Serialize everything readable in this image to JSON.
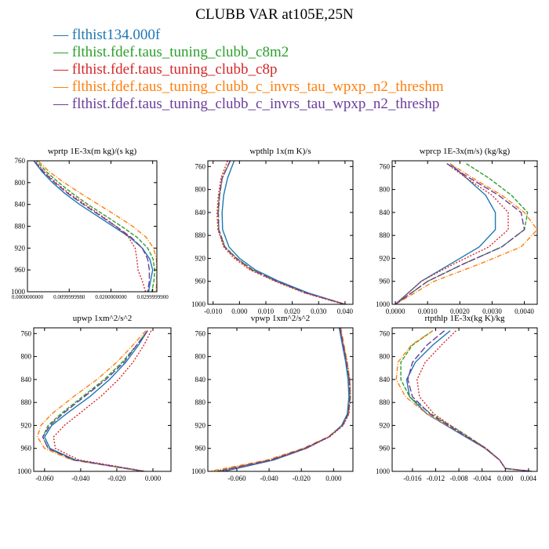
{
  "title": "CLUBB VAR at105E,25N",
  "colors": {
    "flthist134.000f": "#1f77b4",
    "flthist.fdef.taus_tuning_clubb_c8m2": "#2ca02c",
    "flthist.fdef.taus_tuning_clubb_c8p": "#d62728",
    "flthist.fdef.taus_tuning_clubb_c_invrs_tau_wpxp_n2_threshm": "#ff7f0e",
    "flthist.fdef.taus_tuning_clubb_c_invrs_tau_wpxp_n2_threshp": "#6a3d9a"
  },
  "legend": {
    "marker": "—",
    "entries": [
      "flthist134.000f",
      "flthist.fdef.taus_tuning_clubb_c8m2",
      "flthist.fdef.taus_tuning_clubb_c8p",
      "flthist.fdef.taus_tuning_clubb_c_invrs_tau_wpxp_n2_threshm",
      "flthist.fdef.taus_tuning_clubb_c_invrs_tau_wpxp_n2_threshp"
    ]
  },
  "chart_data": [
    {
      "type": "line",
      "title": "wprtp  1E-3x(m kg)/(s kg)",
      "xlim": [
        0,
        0.031
      ],
      "ylim": [
        760,
        1000
      ],
      "y_inverted": true,
      "xticks": [
        0,
        0.01,
        0.02,
        0.03
      ],
      "xticklabels": [
        "0.0000000000",
        "0.0099999980",
        "0.0200000000",
        "0.0299999900"
      ],
      "yticks": [
        760,
        800,
        840,
        880,
        920,
        960,
        1000
      ],
      "yticklabels": [
        "760",
        "800",
        "840",
        "880",
        "920",
        "960",
        "1000"
      ],
      "y": [
        750,
        780,
        800,
        820,
        840,
        860,
        880,
        900,
        920,
        940,
        960,
        980,
        1000
      ],
      "series": [
        {
          "name": "flthist134.000f",
          "x": [
            0.0005,
            0.0035,
            0.006,
            0.009,
            0.0125,
            0.0165,
            0.0205,
            0.0245,
            0.0275,
            0.0293,
            0.03,
            0.0295,
            0.029
          ]
        },
        {
          "name": "flthist.fdef.taus_tuning_clubb_c8m2",
          "x": [
            0.001,
            0.0045,
            0.0075,
            0.0108,
            0.0145,
            0.0185,
            0.0225,
            0.0262,
            0.0288,
            0.0301,
            0.0305,
            0.0303,
            0.0298
          ]
        },
        {
          "name": "flthist.fdef.taus_tuning_clubb_c8p",
          "x": [
            0.0005,
            0.004,
            0.0068,
            0.01,
            0.0138,
            0.0176,
            0.0212,
            0.0242,
            0.0258,
            0.0262,
            0.0265,
            0.0275,
            0.0283
          ]
        },
        {
          "name": "flthist.fdef.taus_tuning_clubb_c_invrs_tau_wpxp_n2_threshm",
          "x": [
            0.0012,
            0.0052,
            0.0088,
            0.0128,
            0.017,
            0.0212,
            0.0252,
            0.0284,
            0.0302,
            0.0309,
            0.031,
            0.031,
            0.0308
          ]
        },
        {
          "name": "flthist.fdef.taus_tuning_clubb_c_invrs_tau_wpxp_n2_threshp",
          "x": [
            0.0005,
            0.0038,
            0.0065,
            0.0097,
            0.0134,
            0.0173,
            0.0212,
            0.0248,
            0.0275,
            0.0288,
            0.0292,
            0.0292,
            0.0288
          ]
        }
      ]
    },
    {
      "type": "line",
      "title": "wpthlp  1x(m K)/s",
      "xlim": [
        -0.012,
        0.043
      ],
      "ylim": [
        750,
        1000
      ],
      "y_inverted": true,
      "xticks": [
        -0.01,
        0.0,
        0.01,
        0.02,
        0.03,
        0.04
      ],
      "xticklabels": [
        "-0.010",
        "0.000",
        "0.010",
        "0.020",
        "0.030",
        "0.040"
      ],
      "yticks": [
        760,
        800,
        840,
        880,
        920,
        960,
        1000
      ],
      "yticklabels": [
        "760",
        "800",
        "840",
        "880",
        "920",
        "960",
        "1000"
      ],
      "y": [
        750,
        780,
        810,
        840,
        870,
        900,
        920,
        940,
        960,
        980,
        1000
      ],
      "series": [
        {
          "name": "flthist134.000f",
          "x": [
            -0.002,
            -0.0045,
            -0.006,
            -0.0066,
            -0.0064,
            -0.004,
            0.0,
            0.006,
            0.015,
            0.026,
            0.04
          ]
        },
        {
          "name": "flthist.fdef.taus_tuning_clubb_c8m2",
          "x": [
            -0.0035,
            -0.0065,
            -0.0075,
            -0.008,
            -0.0078,
            -0.0055,
            -0.001,
            0.005,
            0.014,
            0.025,
            0.04
          ]
        },
        {
          "name": "flthist.fdef.taus_tuning_clubb_c8p",
          "x": [
            -0.0045,
            -0.007,
            -0.008,
            -0.0085,
            -0.0082,
            -0.006,
            -0.002,
            0.004,
            0.0135,
            0.0245,
            0.0395
          ]
        },
        {
          "name": "flthist.fdef.taus_tuning_clubb_c_invrs_tau_wpxp_n2_threshm",
          "x": [
            -0.0035,
            -0.0066,
            -0.0077,
            -0.0082,
            -0.008,
            -0.0058,
            -0.0015,
            0.0045,
            0.014,
            0.025,
            0.0405
          ]
        },
        {
          "name": "flthist.fdef.taus_tuning_clubb_c_invrs_tau_wpxp_n2_threshp",
          "x": [
            -0.0035,
            -0.0066,
            -0.0076,
            -0.0081,
            -0.0079,
            -0.0056,
            -0.0012,
            0.0048,
            0.0142,
            0.0252,
            0.04
          ]
        }
      ]
    },
    {
      "type": "line",
      "title": "wprcp  1E-3x(m/s) (kg/kg)",
      "xlim": [
        -0.0001,
        0.0044
      ],
      "ylim": [
        750,
        1000
      ],
      "y_inverted": true,
      "xticks": [
        0.0,
        0.001,
        0.002,
        0.003,
        0.004
      ],
      "xticklabels": [
        "0.0000",
        "0.0010",
        "0.0020",
        "0.0030",
        "0.0040"
      ],
      "yticks": [
        760,
        800,
        840,
        880,
        920,
        960,
        1000
      ],
      "yticklabels": [
        "760",
        "800",
        "840",
        "880",
        "920",
        "960",
        "1000"
      ],
      "y": [
        755,
        780,
        810,
        840,
        870,
        900,
        930,
        960,
        980,
        1000
      ],
      "series": [
        {
          "name": "flthist134.000f",
          "x": [
            0.0017,
            0.0022,
            0.0028,
            0.0031,
            0.0031,
            0.0026,
            0.0017,
            0.0008,
            0.0004,
            0.0
          ]
        },
        {
          "name": "flthist.fdef.taus_tuning_clubb_c8m2",
          "x": [
            0.0022,
            0.0029,
            0.0036,
            0.0041,
            0.004,
            0.0033,
            0.0021,
            0.001,
            0.0005,
            0.0
          ]
        },
        {
          "name": "flthist.fdef.taus_tuning_clubb_c8p",
          "x": [
            0.0016,
            0.0022,
            0.003,
            0.0035,
            0.0035,
            0.0029,
            0.0018,
            0.0008,
            0.0004,
            0.0
          ]
        },
        {
          "name": "flthist.fdef.taus_tuning_clubb_c_invrs_tau_wpxp_n2_threshm",
          "x": [
            0.0017,
            0.0024,
            0.0033,
            0.004,
            0.0044,
            0.0039,
            0.0026,
            0.0012,
            0.0006,
            0.0
          ]
        },
        {
          "name": "flthist.fdef.taus_tuning_clubb_c_invrs_tau_wpxp_n2_threshp",
          "x": [
            0.0016,
            0.0023,
            0.0032,
            0.0039,
            0.004,
            0.0033,
            0.0021,
            0.001,
            0.0005,
            0.0
          ]
        }
      ]
    },
    {
      "type": "line",
      "title": "upwp  1xm^2/s^2",
      "xlim": [
        -0.066,
        0.01
      ],
      "ylim": [
        750,
        1000
      ],
      "y_inverted": true,
      "xticks": [
        -0.06,
        -0.04,
        -0.02,
        0.0
      ],
      "xticklabels": [
        "-0.060",
        "-0.040",
        "-0.020",
        "0.000"
      ],
      "yticks": [
        760,
        800,
        840,
        880,
        920,
        960,
        1000
      ],
      "yticklabels": [
        "760",
        "800",
        "840",
        "880",
        "920",
        "960",
        "1000"
      ],
      "y": [
        755,
        780,
        810,
        840,
        870,
        900,
        920,
        940,
        960,
        980,
        1000
      ],
      "series": [
        {
          "name": "flthist134.000f",
          "x": [
            -0.003,
            -0.008,
            -0.015,
            -0.024,
            -0.035,
            -0.048,
            -0.056,
            -0.06,
            -0.057,
            -0.043,
            -0.005
          ]
        },
        {
          "name": "flthist.fdef.taus_tuning_clubb_c8m2",
          "x": [
            -0.003,
            -0.009,
            -0.017,
            -0.027,
            -0.039,
            -0.051,
            -0.058,
            -0.061,
            -0.058,
            -0.044,
            -0.005
          ]
        },
        {
          "name": "flthist.fdef.taus_tuning_clubb_c8p",
          "x": [
            -0.001,
            -0.005,
            -0.011,
            -0.019,
            -0.029,
            -0.041,
            -0.049,
            -0.055,
            -0.054,
            -0.041,
            -0.004
          ]
        },
        {
          "name": "flthist.fdef.taus_tuning_clubb_c_invrs_tau_wpxp_n2_threshm",
          "x": [
            -0.004,
            -0.011,
            -0.02,
            -0.031,
            -0.044,
            -0.056,
            -0.062,
            -0.064,
            -0.06,
            -0.045,
            -0.005
          ]
        },
        {
          "name": "flthist.fdef.taus_tuning_clubb_c_invrs_tau_wpxp_n2_threshp",
          "x": [
            -0.003,
            -0.009,
            -0.016,
            -0.026,
            -0.038,
            -0.05,
            -0.057,
            -0.061,
            -0.058,
            -0.044,
            -0.005
          ]
        }
      ]
    },
    {
      "type": "line",
      "title": "vpwp  1xm^2/s^2",
      "xlim": [
        -0.078,
        0.012
      ],
      "ylim": [
        750,
        1000
      ],
      "y_inverted": true,
      "xticks": [
        -0.06,
        -0.04,
        -0.02,
        0.0
      ],
      "xticklabels": [
        "-0.060",
        "-0.040",
        "-0.020",
        "0.000"
      ],
      "yticks": [
        760,
        800,
        840,
        880,
        920,
        960,
        1000
      ],
      "yticklabels": [
        "760",
        "800",
        "840",
        "880",
        "920",
        "960",
        "1000"
      ],
      "y": [
        750,
        780,
        810,
        840,
        870,
        900,
        920,
        940,
        960,
        980,
        1000
      ],
      "series": [
        {
          "name": "flthist134.000f",
          "x": [
            0.0035,
            0.0055,
            0.0075,
            0.009,
            0.0095,
            0.0085,
            0.005,
            -0.003,
            -0.017,
            -0.037,
            -0.068
          ]
        },
        {
          "name": "flthist.fdef.taus_tuning_clubb_c8m2",
          "x": [
            0.004,
            0.006,
            0.008,
            0.0095,
            0.01,
            0.009,
            0.0055,
            -0.003,
            -0.018,
            -0.039,
            -0.073
          ]
        },
        {
          "name": "flthist.fdef.taus_tuning_clubb_c8p",
          "x": [
            0.004,
            0.006,
            0.0085,
            0.01,
            0.0105,
            0.0095,
            0.006,
            -0.0025,
            -0.017,
            -0.038,
            -0.07
          ]
        },
        {
          "name": "flthist.fdef.taus_tuning_clubb_c_invrs_tau_wpxp_n2_threshm",
          "x": [
            0.0045,
            0.0065,
            0.0085,
            0.01,
            0.0105,
            0.0093,
            0.0055,
            -0.0035,
            -0.019,
            -0.041,
            -0.077
          ]
        },
        {
          "name": "flthist.fdef.taus_tuning_clubb_c_invrs_tau_wpxp_n2_threshp",
          "x": [
            0.004,
            0.006,
            0.008,
            0.0097,
            0.0102,
            0.0091,
            0.0056,
            -0.003,
            -0.018,
            -0.039,
            -0.072
          ]
        }
      ]
    },
    {
      "type": "line",
      "title": "rtpthlp  1E-3x(kg K)/kg",
      "xlim": [
        -0.0195,
        0.0055
      ],
      "ylim": [
        750,
        1000
      ],
      "y_inverted": true,
      "xticks": [
        -0.016,
        -0.012,
        -0.008,
        -0.004,
        0.0,
        0.004
      ],
      "xticklabels": [
        "-0.016",
        "-0.012",
        "-0.008",
        "-0.004",
        "0.000",
        "0.004"
      ],
      "yticks": [
        760,
        800,
        840,
        880,
        920,
        960,
        1000
      ],
      "yticklabels": [
        "760",
        "800",
        "840",
        "880",
        "920",
        "960",
        "1000"
      ],
      "y": [
        755,
        780,
        810,
        840,
        870,
        900,
        930,
        960,
        980,
        995,
        1000
      ],
      "series": [
        {
          "name": "flthist134.000f",
          "x": [
            -0.0095,
            -0.0125,
            -0.0155,
            -0.017,
            -0.0165,
            -0.0135,
            -0.0085,
            -0.0035,
            -0.001,
            0.0,
            0.0045
          ]
        },
        {
          "name": "flthist.fdef.taus_tuning_clubb_c8m2",
          "x": [
            -0.0125,
            -0.016,
            -0.018,
            -0.018,
            -0.0165,
            -0.0128,
            -0.0078,
            -0.0033,
            -0.001,
            0.0,
            0.0045
          ]
        },
        {
          "name": "flthist.fdef.taus_tuning_clubb_c8p",
          "x": [
            -0.0085,
            -0.011,
            -0.0138,
            -0.0152,
            -0.0148,
            -0.0123,
            -0.008,
            -0.0033,
            -0.001,
            0.0,
            0.0045
          ]
        },
        {
          "name": "flthist.fdef.taus_tuning_clubb_c_invrs_tau_wpxp_n2_threshm",
          "x": [
            -0.0125,
            -0.0162,
            -0.0185,
            -0.0188,
            -0.0172,
            -0.0135,
            -0.0082,
            -0.0035,
            -0.001,
            0.0,
            0.0045
          ]
        },
        {
          "name": "flthist.fdef.taus_tuning_clubb_c_invrs_tau_wpxp_n2_threshp",
          "x": [
            -0.0105,
            -0.0135,
            -0.016,
            -0.0168,
            -0.016,
            -0.013,
            -0.0082,
            -0.0034,
            -0.001,
            0.0,
            0.0045
          ]
        }
      ]
    }
  ]
}
